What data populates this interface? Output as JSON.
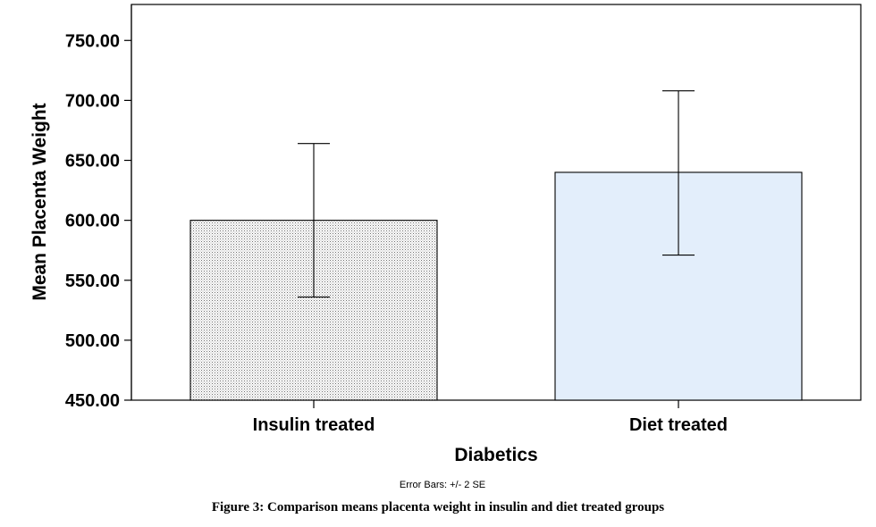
{
  "chart_data": {
    "type": "bar",
    "categories": [
      "Insulin treated",
      "Diet treated"
    ],
    "values": [
      600,
      640
    ],
    "error_bars": [
      {
        "low": 536,
        "high": 664
      },
      {
        "low": 571,
        "high": 708
      }
    ],
    "error_bar_note": "Error Bars: +/- 2 SE",
    "xlabel": "Diabetics",
    "ylabel": "Mean Placenta Weight",
    "ylim": [
      450,
      780
    ],
    "yticks": [
      450,
      500,
      550,
      600,
      650,
      700,
      750
    ],
    "ytick_labels": [
      "450.00",
      "500.00",
      "550.00",
      "600.00",
      "650.00",
      "700.00",
      "750.00"
    ],
    "grid": false,
    "bar_styles": [
      "stippled-gray",
      "light-blue"
    ],
    "colors": {
      "bar2_fill": "#e3eefb",
      "bar1_dot": "#6e6e6e",
      "axis": "#000000"
    }
  },
  "caption": "Figure 3: Comparison means placenta weight in insulin and diet treated groups"
}
